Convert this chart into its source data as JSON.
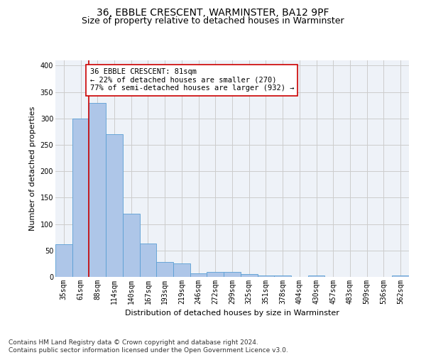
{
  "title1": "36, EBBLE CRESCENT, WARMINSTER, BA12 9PF",
  "title2": "Size of property relative to detached houses in Warminster",
  "xlabel": "Distribution of detached houses by size in Warminster",
  "ylabel": "Number of detached properties",
  "categories": [
    "35sqm",
    "61sqm",
    "88sqm",
    "114sqm",
    "140sqm",
    "167sqm",
    "193sqm",
    "219sqm",
    "246sqm",
    "272sqm",
    "299sqm",
    "325sqm",
    "351sqm",
    "378sqm",
    "404sqm",
    "430sqm",
    "457sqm",
    "483sqm",
    "509sqm",
    "536sqm",
    "562sqm"
  ],
  "values": [
    62,
    300,
    330,
    270,
    120,
    63,
    28,
    25,
    7,
    10,
    10,
    5,
    3,
    3,
    0,
    3,
    0,
    0,
    0,
    0,
    3
  ],
  "bar_color": "#aec6e8",
  "bar_edge_color": "#5a9fd4",
  "red_line_index": 2,
  "annotation_text": "36 EBBLE CRESCENT: 81sqm\n← 22% of detached houses are smaller (270)\n77% of semi-detached houses are larger (932) →",
  "annotation_box_color": "#ffffff",
  "annotation_box_edge": "#cc0000",
  "red_line_color": "#cc0000",
  "grid_color": "#cccccc",
  "background_color": "#eef2f8",
  "ylim": [
    0,
    410
  ],
  "yticks": [
    0,
    50,
    100,
    150,
    200,
    250,
    300,
    350,
    400
  ],
  "footnote": "Contains HM Land Registry data © Crown copyright and database right 2024.\nContains public sector information licensed under the Open Government Licence v3.0.",
  "title1_fontsize": 10,
  "title2_fontsize": 9,
  "annotation_fontsize": 7.5,
  "footnote_fontsize": 6.5,
  "xlabel_fontsize": 8,
  "ylabel_fontsize": 8,
  "tick_fontsize": 7
}
